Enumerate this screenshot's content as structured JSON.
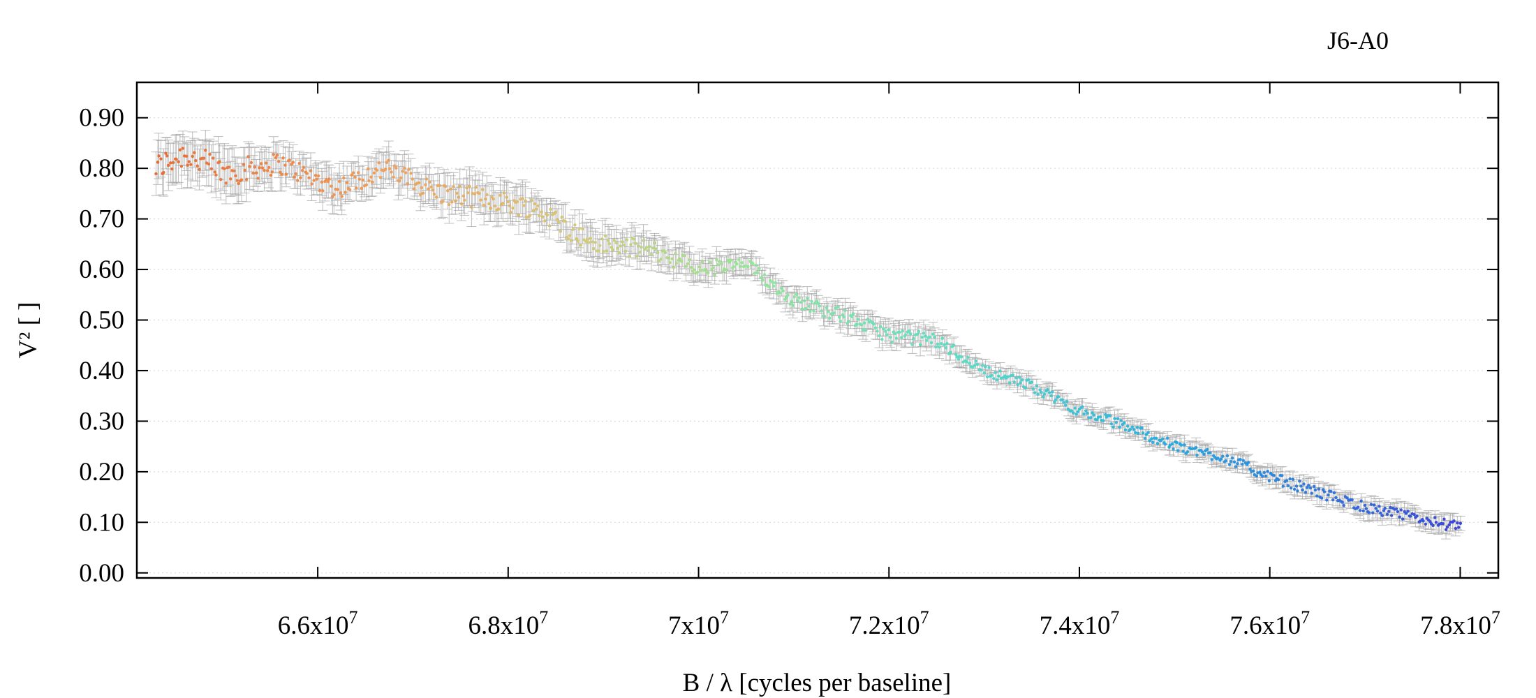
{
  "chart_data": {
    "type": "scatter",
    "title": "J6-A0",
    "xlabel": "B / λ [cycles per baseline]",
    "ylabel": "V² [ ]",
    "xlim": [
      64100000,
      78400000
    ],
    "ylim": [
      -0.01,
      0.97
    ],
    "x_ticks": [
      66000000,
      68000000,
      70000000,
      72000000,
      74000000,
      76000000,
      78000000
    ],
    "x_tick_labels": [
      {
        "mantissa": "6.6x10",
        "exp": "7"
      },
      {
        "mantissa": "6.8x10",
        "exp": "7"
      },
      {
        "mantissa": "7x10",
        "exp": "7"
      },
      {
        "mantissa": "7.2x10",
        "exp": "7"
      },
      {
        "mantissa": "7.4x10",
        "exp": "7"
      },
      {
        "mantissa": "7.6x10",
        "exp": "7"
      },
      {
        "mantissa": "7.8x10",
        "exp": "7"
      }
    ],
    "y_ticks": [
      0.0,
      0.1,
      0.2,
      0.3,
      0.4,
      0.5,
      0.6,
      0.7,
      0.8,
      0.9
    ],
    "y_tick_labels": [
      "0.00",
      "0.10",
      "0.20",
      "0.30",
      "0.40",
      "0.50",
      "0.60",
      "0.70",
      "0.80",
      "0.90"
    ],
    "grid": "horizontal dotted",
    "error_bar_color": "#a8a8a8",
    "color_scale": "wavelength (orange → green → cyan → blue)",
    "series": [
      {
        "x": [
          64300000,
          64600000,
          65000000,
          65600000,
          66200000,
          66700000,
          67300000,
          67800000,
          68300000,
          68900000,
          69500000,
          70000000,
          70500000,
          71000000,
          71500000,
          72000000,
          72500000,
          73000000,
          73500000,
          74000000,
          74500000,
          75000000,
          75500000,
          76000000,
          76500000,
          77000000,
          77500000,
          78000000
        ],
        "y": [
          0.8,
          0.83,
          0.79,
          0.81,
          0.76,
          0.8,
          0.75,
          0.74,
          0.72,
          0.65,
          0.64,
          0.6,
          0.61,
          0.54,
          0.51,
          0.47,
          0.46,
          0.4,
          0.37,
          0.32,
          0.29,
          0.25,
          0.23,
          0.19,
          0.16,
          0.13,
          0.11,
          0.09
        ],
        "y_err": [
          0.04,
          0.04,
          0.04,
          0.03,
          0.03,
          0.03,
          0.03,
          0.03,
          0.03,
          0.03,
          0.025,
          0.025,
          0.02,
          0.02,
          0.02,
          0.02,
          0.02,
          0.015,
          0.015,
          0.015,
          0.015,
          0.015,
          0.015,
          0.015,
          0.015,
          0.015,
          0.015,
          0.015
        ]
      }
    ]
  }
}
